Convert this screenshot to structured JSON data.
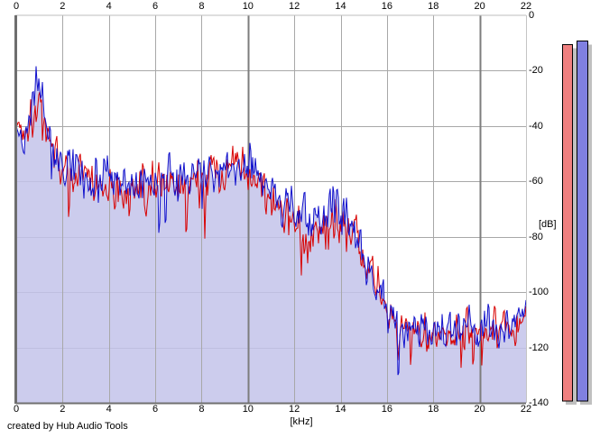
{
  "credit": "created by Hub Audio Tools",
  "axes": {
    "x": {
      "unit_label": "[kHz]",
      "ticks": [
        0,
        2,
        4,
        6,
        8,
        10,
        12,
        14,
        16,
        18,
        20,
        22
      ]
    },
    "y": {
      "unit_label": "[dB]",
      "ticks": [
        0,
        -20,
        -40,
        -60,
        -80,
        -100,
        -120,
        -140
      ]
    }
  },
  "meters": {
    "shadow_color": "#C0C0C0",
    "border_color": "#000000",
    "bars": [
      {
        "name": "peak-meter-red",
        "color": "#F08080",
        "peak_db": -10.5
      },
      {
        "name": "peak-meter-blue",
        "color": "#8080E0",
        "peak_db": -9.3
      }
    ]
  },
  "chart_data": {
    "type": "line",
    "title": "",
    "xlabel": "[kHz]",
    "ylabel": "[dB]",
    "xlim": [
      0,
      22
    ],
    "ylim": [
      -140,
      0
    ],
    "grid": true,
    "grid_color": "#A8A8A8",
    "grid_major_color": "#7D7D7D",
    "axis_color": "#6E6E6E",
    "background": "#FFFFFF",
    "peak_db": -18,
    "peak_khz": 0.9,
    "noise_floor_db": -113,
    "rolloff_start_khz": 14.5,
    "rolloff_end_khz": 16,
    "series": [
      {
        "name": "spectrum-blue",
        "color": "#1010CC",
        "fill": "#C3C3EA",
        "seed": 42,
        "envelope_db": [
          [
            0,
            -40,
            6
          ],
          [
            0.3,
            -44,
            7
          ],
          [
            0.55,
            -36,
            9
          ],
          [
            0.75,
            -28,
            9
          ],
          [
            0.95,
            -26,
            10
          ],
          [
            1.15,
            -34,
            9
          ],
          [
            1.5,
            -46,
            8
          ],
          [
            2,
            -53,
            9
          ],
          [
            2.5,
            -56,
            9
          ],
          [
            3,
            -58,
            9
          ],
          [
            4,
            -60,
            9
          ],
          [
            5,
            -60,
            9
          ],
          [
            6,
            -61,
            9
          ],
          [
            6.5,
            -61,
            9
          ],
          [
            7,
            -60,
            9
          ],
          [
            7.5,
            -58,
            9
          ],
          [
            8,
            -57,
            9
          ],
          [
            8.5,
            -57,
            9
          ],
          [
            9,
            -56,
            9
          ],
          [
            9.6,
            -53,
            8
          ],
          [
            10.2,
            -54,
            8
          ],
          [
            10.6,
            -59,
            9
          ],
          [
            11,
            -63,
            9
          ],
          [
            11.5,
            -68,
            9
          ],
          [
            12,
            -72,
            9
          ],
          [
            12.5,
            -73,
            9
          ],
          [
            13,
            -72,
            9
          ],
          [
            13.6,
            -70,
            9
          ],
          [
            14.2,
            -73,
            9
          ],
          [
            14.7,
            -80,
            9
          ],
          [
            15.2,
            -90,
            9
          ],
          [
            15.7,
            -100,
            8
          ],
          [
            16.2,
            -108,
            7
          ],
          [
            16.7,
            -112,
            7
          ],
          [
            17.2,
            -113,
            8
          ],
          [
            18,
            -113,
            8
          ],
          [
            19,
            -112,
            8
          ],
          [
            20,
            -113,
            8
          ],
          [
            20.7,
            -112,
            8
          ],
          [
            21.4,
            -113,
            8
          ],
          [
            21.8,
            -110,
            7
          ],
          [
            22,
            -106,
            5
          ]
        ]
      },
      {
        "name": "spectrum-red",
        "color": "#D80000",
        "fill": null,
        "seed": 1337,
        "envelope_db": [
          [
            0,
            -38,
            4
          ],
          [
            0.25,
            -42,
            7
          ],
          [
            0.55,
            -38,
            8
          ],
          [
            0.8,
            -33,
            8
          ],
          [
            1,
            -34,
            8
          ],
          [
            1.2,
            -38,
            8
          ],
          [
            1.6,
            -48,
            9
          ],
          [
            2,
            -55,
            9
          ],
          [
            3,
            -60,
            9
          ],
          [
            4,
            -62,
            9
          ],
          [
            5,
            -62,
            9
          ],
          [
            6,
            -63,
            9
          ],
          [
            7,
            -62,
            9
          ],
          [
            7.5,
            -60,
            9
          ],
          [
            8,
            -58,
            9
          ],
          [
            8.7,
            -58,
            9
          ],
          [
            9.5,
            -55,
            8
          ],
          [
            10.1,
            -57,
            8
          ],
          [
            10.6,
            -62,
            9
          ],
          [
            11,
            -67,
            10
          ],
          [
            11.6,
            -72,
            10
          ],
          [
            12,
            -76,
            10
          ],
          [
            12.6,
            -77,
            10
          ],
          [
            13.2,
            -75,
            10
          ],
          [
            13.8,
            -74,
            10
          ],
          [
            14.3,
            -77,
            10
          ],
          [
            14.8,
            -84,
            9
          ],
          [
            15.3,
            -93,
            9
          ],
          [
            15.8,
            -103,
            8
          ],
          [
            16.3,
            -110,
            7
          ],
          [
            16.8,
            -113,
            7
          ],
          [
            17.5,
            -114,
            8
          ],
          [
            18.5,
            -113,
            8
          ],
          [
            19.5,
            -114,
            8
          ],
          [
            20.5,
            -113,
            8
          ],
          [
            21.2,
            -114,
            9
          ],
          [
            21.8,
            -112,
            7
          ],
          [
            22,
            -109,
            5
          ]
        ]
      }
    ]
  }
}
